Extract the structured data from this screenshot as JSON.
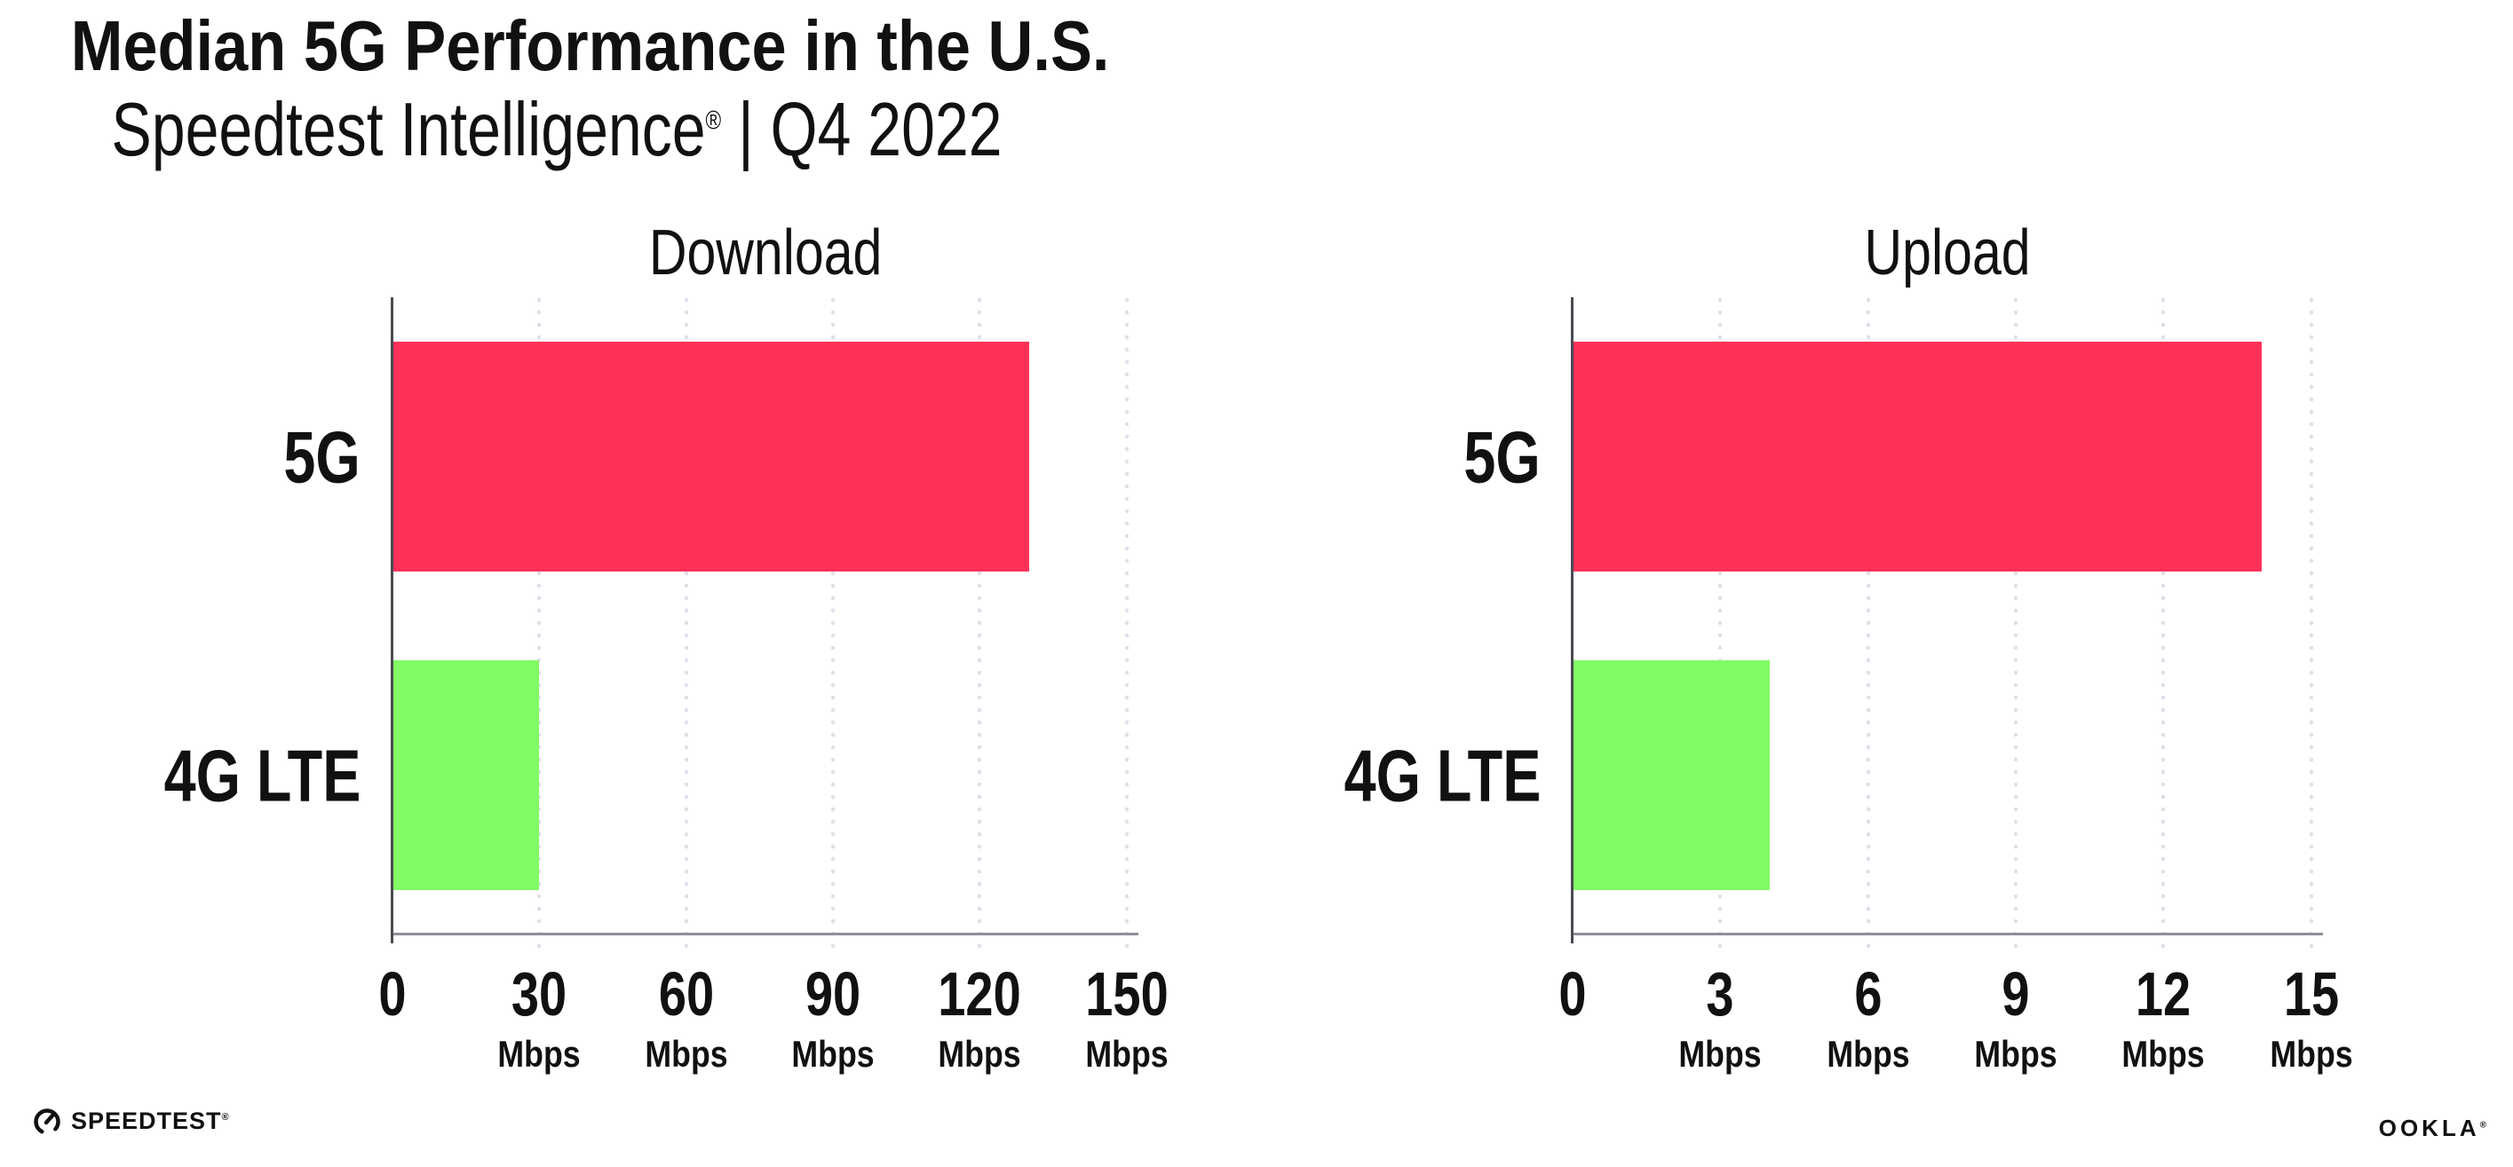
{
  "header": {
    "title": "Median 5G Performance in the U.S.",
    "subtitle_brand": "Speedtest Intelligence",
    "subtitle_reg": "®",
    "subtitle_rest": " | Q4 2022"
  },
  "footer": {
    "speedtest_text": "SPEEDTEST",
    "speedtest_reg": "®",
    "ookla_text": "OOKLA",
    "ookla_reg": "®"
  },
  "colors": {
    "bar_5g": "#ff3158",
    "bar_4g_lte": "#81fa63",
    "axis_line": "#8f8f97",
    "y_spine": "#4a4a52",
    "grid_dot": "#dfdfeb",
    "text": "#111111",
    "background": "#ffffff"
  },
  "chart_data": [
    {
      "type": "bar",
      "orientation": "horizontal",
      "title": "Download",
      "categories": [
        "5G",
        "4G LTE"
      ],
      "values": [
        130,
        30
      ],
      "unit": "Mbps",
      "ticks": [
        0,
        30,
        60,
        90,
        120,
        150
      ],
      "tick_unit_label": "Mbps",
      "xlim": [
        0,
        152.5
      ],
      "grid": "dotted-vertical",
      "legend": "none",
      "bar_colors": [
        "#ff3158",
        "#81fa63"
      ]
    },
    {
      "type": "bar",
      "orientation": "horizontal",
      "title": "Upload",
      "categories": [
        "5G",
        "4G LTE"
      ],
      "values": [
        14,
        4
      ],
      "unit": "Mbps",
      "ticks": [
        0,
        3,
        6,
        9,
        12,
        15
      ],
      "tick_unit_label": "Mbps",
      "xlim": [
        0,
        15.25
      ],
      "grid": "dotted-vertical",
      "legend": "none",
      "bar_colors": [
        "#ff3158",
        "#81fa63"
      ]
    }
  ]
}
